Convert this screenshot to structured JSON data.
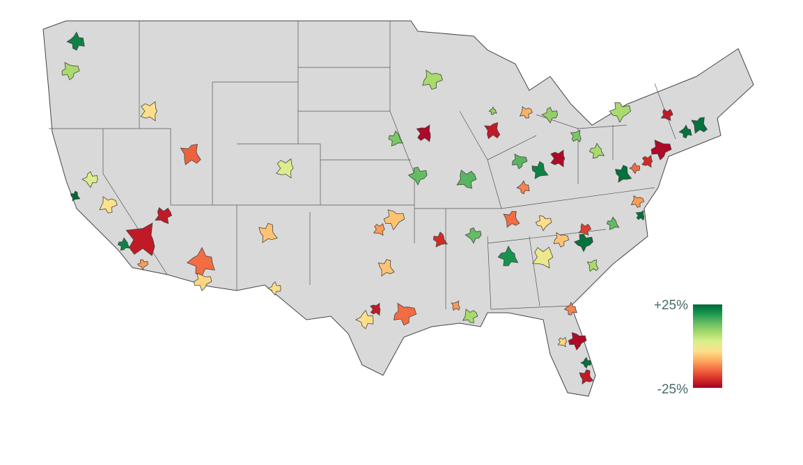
{
  "chart_data": {
    "type": "choropleth",
    "values": [
      22,
      8,
      -3,
      25,
      2,
      -2,
      -22,
      22,
      -10,
      -22,
      -15,
      -14,
      -4,
      2,
      -6,
      -3,
      8,
      -24,
      12,
      14,
      15,
      -22,
      10,
      -6,
      -10,
      -6,
      -3,
      -14,
      -22,
      -20,
      14,
      8,
      -10,
      20,
      -3,
      0,
      -14,
      -12,
      15,
      -24,
      22,
      10,
      -8,
      12,
      8,
      8,
      -22,
      24,
      24,
      -24,
      -20,
      24,
      -14,
      -10,
      24,
      14,
      24,
      -18,
      8,
      -12,
      -24,
      -4,
      -22,
      24,
      -6
    ],
    "clim": [
      -25,
      25
    ],
    "colors": [
      "#a50026",
      "#d73027",
      "#f46d43",
      "#fdae61",
      "#fee08b",
      "#d9ef8b",
      "#a6d96a",
      "#66bd63",
      "#1a9850",
      "#006837"
    ],
    "legend": {
      "ticks": [
        {
          "value": 25,
          "label": "+25%"
        },
        {
          "value": -25,
          "label": "-25%"
        }
      ]
    }
  }
}
